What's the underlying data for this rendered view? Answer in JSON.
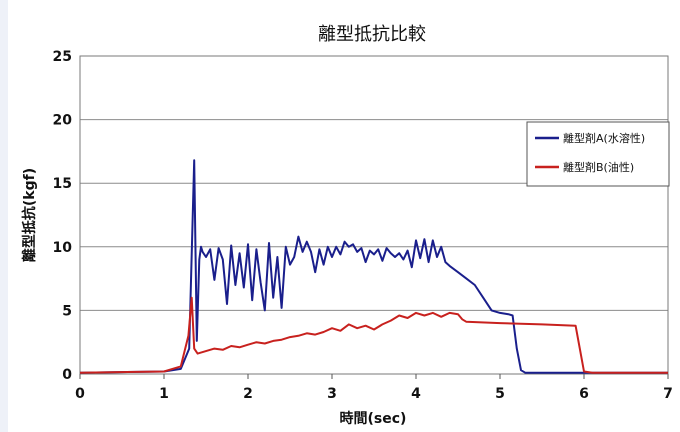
{
  "chart_data": {
    "type": "line",
    "title": "離型抵抗比較",
    "xlabel": "時間(sec)",
    "ylabel": "離型抵抗(kgf)",
    "xlim": [
      0,
      7
    ],
    "ylim": [
      0,
      25
    ],
    "xticks": [
      0,
      1,
      2,
      3,
      4,
      5,
      6,
      7
    ],
    "yticks": [
      0,
      5,
      10,
      15,
      20,
      25
    ],
    "grid": "horizontal",
    "legend_position": "right",
    "series": [
      {
        "name": "離型剤A(水溶性)",
        "color": "#1a1f8c",
        "x": [
          0,
          1.0,
          1.2,
          1.3,
          1.36,
          1.39,
          1.42,
          1.44,
          1.46,
          1.5,
          1.55,
          1.6,
          1.65,
          1.7,
          1.75,
          1.8,
          1.85,
          1.9,
          1.95,
          2.0,
          2.05,
          2.1,
          2.15,
          2.2,
          2.25,
          2.3,
          2.35,
          2.4,
          2.45,
          2.5,
          2.55,
          2.6,
          2.65,
          2.7,
          2.75,
          2.8,
          2.85,
          2.9,
          2.95,
          3.0,
          3.05,
          3.1,
          3.15,
          3.2,
          3.25,
          3.3,
          3.35,
          3.4,
          3.45,
          3.5,
          3.55,
          3.6,
          3.65,
          3.7,
          3.75,
          3.8,
          3.85,
          3.9,
          3.95,
          4.0,
          4.05,
          4.1,
          4.15,
          4.2,
          4.25,
          4.3,
          4.35,
          4.4,
          4.5,
          4.6,
          4.7,
          4.8,
          4.9,
          5.0,
          5.1,
          5.15,
          5.2,
          5.25,
          5.3,
          5.4,
          6.0,
          7.0
        ],
        "values": [
          0.1,
          0.2,
          0.4,
          2.0,
          16.8,
          2.6,
          9.0,
          10.0,
          9.6,
          9.2,
          9.8,
          7.4,
          9.9,
          9.0,
          5.5,
          10.1,
          7.0,
          9.5,
          6.8,
          10.2,
          5.8,
          9.8,
          7.2,
          5.0,
          10.3,
          6.0,
          9.2,
          5.2,
          10.0,
          8.6,
          9.2,
          10.8,
          9.6,
          10.4,
          9.6,
          8.0,
          9.8,
          8.6,
          10.0,
          9.2,
          10.0,
          9.4,
          10.4,
          10.0,
          10.2,
          9.6,
          9.9,
          8.8,
          9.7,
          9.4,
          9.8,
          8.9,
          9.9,
          9.5,
          9.2,
          9.5,
          9.0,
          9.7,
          8.4,
          10.5,
          9.1,
          10.6,
          8.8,
          10.5,
          9.2,
          10.0,
          8.8,
          8.5,
          8.0,
          7.5,
          7.0,
          6.0,
          5.0,
          4.8,
          4.7,
          4.6,
          2.0,
          0.3,
          0.1,
          0.1,
          0.1,
          0.1
        ]
      },
      {
        "name": "離型剤B(油性)",
        "color": "#c8211e",
        "x": [
          0,
          1.0,
          1.2,
          1.29,
          1.33,
          1.36,
          1.4,
          1.5,
          1.6,
          1.7,
          1.8,
          1.9,
          2.0,
          2.1,
          2.2,
          2.3,
          2.4,
          2.5,
          2.6,
          2.7,
          2.8,
          2.9,
          3.0,
          3.1,
          3.2,
          3.3,
          3.4,
          3.5,
          3.6,
          3.7,
          3.8,
          3.9,
          4.0,
          4.1,
          4.2,
          4.3,
          4.4,
          4.5,
          4.55,
          4.6,
          5.0,
          5.5,
          5.9,
          5.95,
          6.0,
          6.1,
          7.0
        ],
        "values": [
          0.1,
          0.2,
          0.6,
          3.0,
          6.0,
          2.0,
          1.6,
          1.8,
          2.0,
          1.9,
          2.2,
          2.1,
          2.3,
          2.5,
          2.4,
          2.6,
          2.7,
          2.9,
          3.0,
          3.2,
          3.1,
          3.3,
          3.6,
          3.4,
          3.9,
          3.6,
          3.8,
          3.5,
          3.9,
          4.2,
          4.6,
          4.4,
          4.8,
          4.6,
          4.8,
          4.5,
          4.8,
          4.7,
          4.3,
          4.1,
          4.0,
          3.9,
          3.8,
          2.0,
          0.2,
          0.1,
          0.1
        ]
      }
    ]
  }
}
